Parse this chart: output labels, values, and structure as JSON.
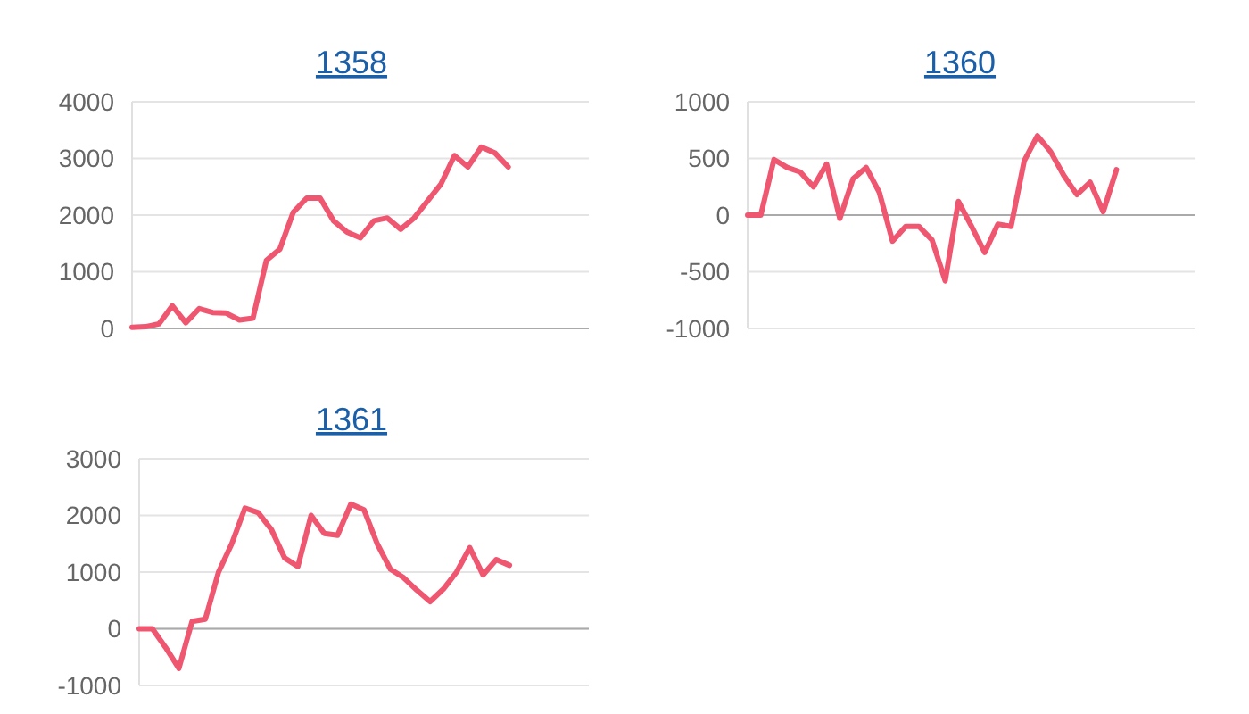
{
  "chart_data": [
    {
      "type": "line",
      "title": "1358",
      "categories": [
        null,
        null,
        null,
        null,
        null,
        null,
        null,
        null,
        null,
        null,
        null,
        null,
        null,
        null,
        null,
        null,
        null,
        null,
        null,
        null,
        null,
        null,
        null,
        null,
        null,
        null,
        null,
        null,
        null,
        null,
        null,
        null,
        null,
        null,
        null
      ],
      "series": [
        {
          "color": "#ef5670",
          "values": [
            20,
            30,
            80,
            400,
            100,
            350,
            280,
            270,
            150,
            180,
            1200,
            1400,
            2050,
            2300,
            2300,
            1900,
            1700,
            1600,
            1900,
            1950,
            1750,
            1950,
            2250,
            2550,
            3050,
            2850,
            3200,
            3100,
            2850,
            null,
            null,
            null,
            null,
            null,
            null
          ]
        }
      ],
      "ylim": [
        0,
        4000
      ],
      "yticks": [
        0,
        1000,
        2000,
        3000,
        4000
      ],
      "grid": "y",
      "tick_labels": "y"
    },
    {
      "type": "line",
      "title": "1360",
      "categories": [
        null,
        null,
        null,
        null,
        null,
        null,
        null,
        null,
        null,
        null,
        null,
        null,
        null,
        null,
        null,
        null,
        null,
        null,
        null,
        null,
        null,
        null,
        null,
        null,
        null,
        null,
        null,
        null,
        null,
        null,
        null,
        null,
        null,
        null,
        null
      ],
      "series": [
        {
          "color": "#ef5670",
          "values": [
            0,
            0,
            490,
            420,
            380,
            250,
            450,
            -30,
            320,
            420,
            200,
            -230,
            -100,
            -100,
            -220,
            -580,
            120,
            -100,
            -330,
            -80,
            -100,
            480,
            700,
            560,
            350,
            180,
            290,
            30,
            400,
            null,
            null,
            null,
            null,
            null,
            null
          ]
        }
      ],
      "ylim": [
        -1000,
        1000
      ],
      "yticks": [
        -1000,
        -500,
        0,
        500,
        1000
      ],
      "grid": "y",
      "tick_labels": "y"
    },
    {
      "type": "line",
      "title": "1361",
      "categories": [
        null,
        null,
        null,
        null,
        null,
        null,
        null,
        null,
        null,
        null,
        null,
        null,
        null,
        null,
        null,
        null,
        null,
        null,
        null,
        null,
        null,
        null,
        null,
        null,
        null,
        null,
        null,
        null,
        null,
        null,
        null,
        null,
        null,
        null,
        null
      ],
      "series": [
        {
          "color": "#ef5670",
          "values": [
            0,
            0,
            -330,
            -700,
            130,
            170,
            1000,
            1500,
            2130,
            2050,
            1750,
            1250,
            1100,
            2000,
            1680,
            1650,
            2200,
            2100,
            1500,
            1050,
            900,
            680,
            480,
            700,
            1000,
            1430,
            950,
            1220,
            1120,
            null,
            null,
            null,
            null,
            null,
            null
          ]
        }
      ],
      "ylim": [
        -1000,
        3000
      ],
      "yticks": [
        -1000,
        0,
        1000,
        2000,
        3000
      ],
      "grid": "y",
      "tick_labels": "y"
    }
  ]
}
